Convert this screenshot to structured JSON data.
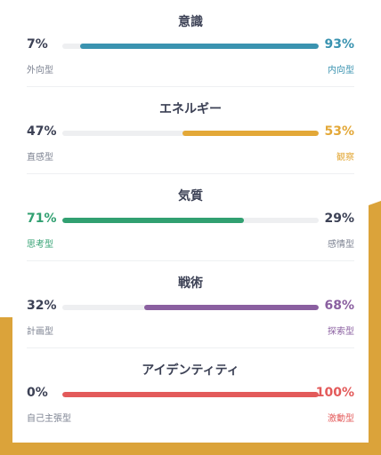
{
  "colors": {
    "background_accent": "#dba33a",
    "mind": "#3a93b0",
    "energy": "#e3a838",
    "nature": "#31a071",
    "tactics": "#8a5fa0",
    "identity": "#e35a5a"
  },
  "traits": [
    {
      "title": "意識",
      "left_pct": "7%",
      "right_pct": "93%",
      "left_label": "外向型",
      "right_label": "内向型",
      "dominant": "right",
      "value": 0.93,
      "color": "#3a93b0"
    },
    {
      "title": "エネルギー",
      "left_pct": "47%",
      "right_pct": "53%",
      "left_label": "直感型",
      "right_label": "観察",
      "dominant": "right",
      "value": 0.53,
      "color": "#e3a838"
    },
    {
      "title": "気質",
      "left_pct": "71%",
      "right_pct": "29%",
      "left_label": "思考型",
      "right_label": "感情型",
      "dominant": "left",
      "value": 0.71,
      "color": "#31a071"
    },
    {
      "title": "戦術",
      "left_pct": "32%",
      "right_pct": "68%",
      "left_label": "計画型",
      "right_label": "探索型",
      "dominant": "right",
      "value": 0.68,
      "color": "#8a5fa0"
    },
    {
      "title": "アイデンティティ",
      "left_pct": "0%",
      "right_pct": "100%",
      "left_label": "自己主張型",
      "right_label": "激動型",
      "dominant": "right",
      "value": 1.0,
      "color": "#e35a5a"
    }
  ]
}
